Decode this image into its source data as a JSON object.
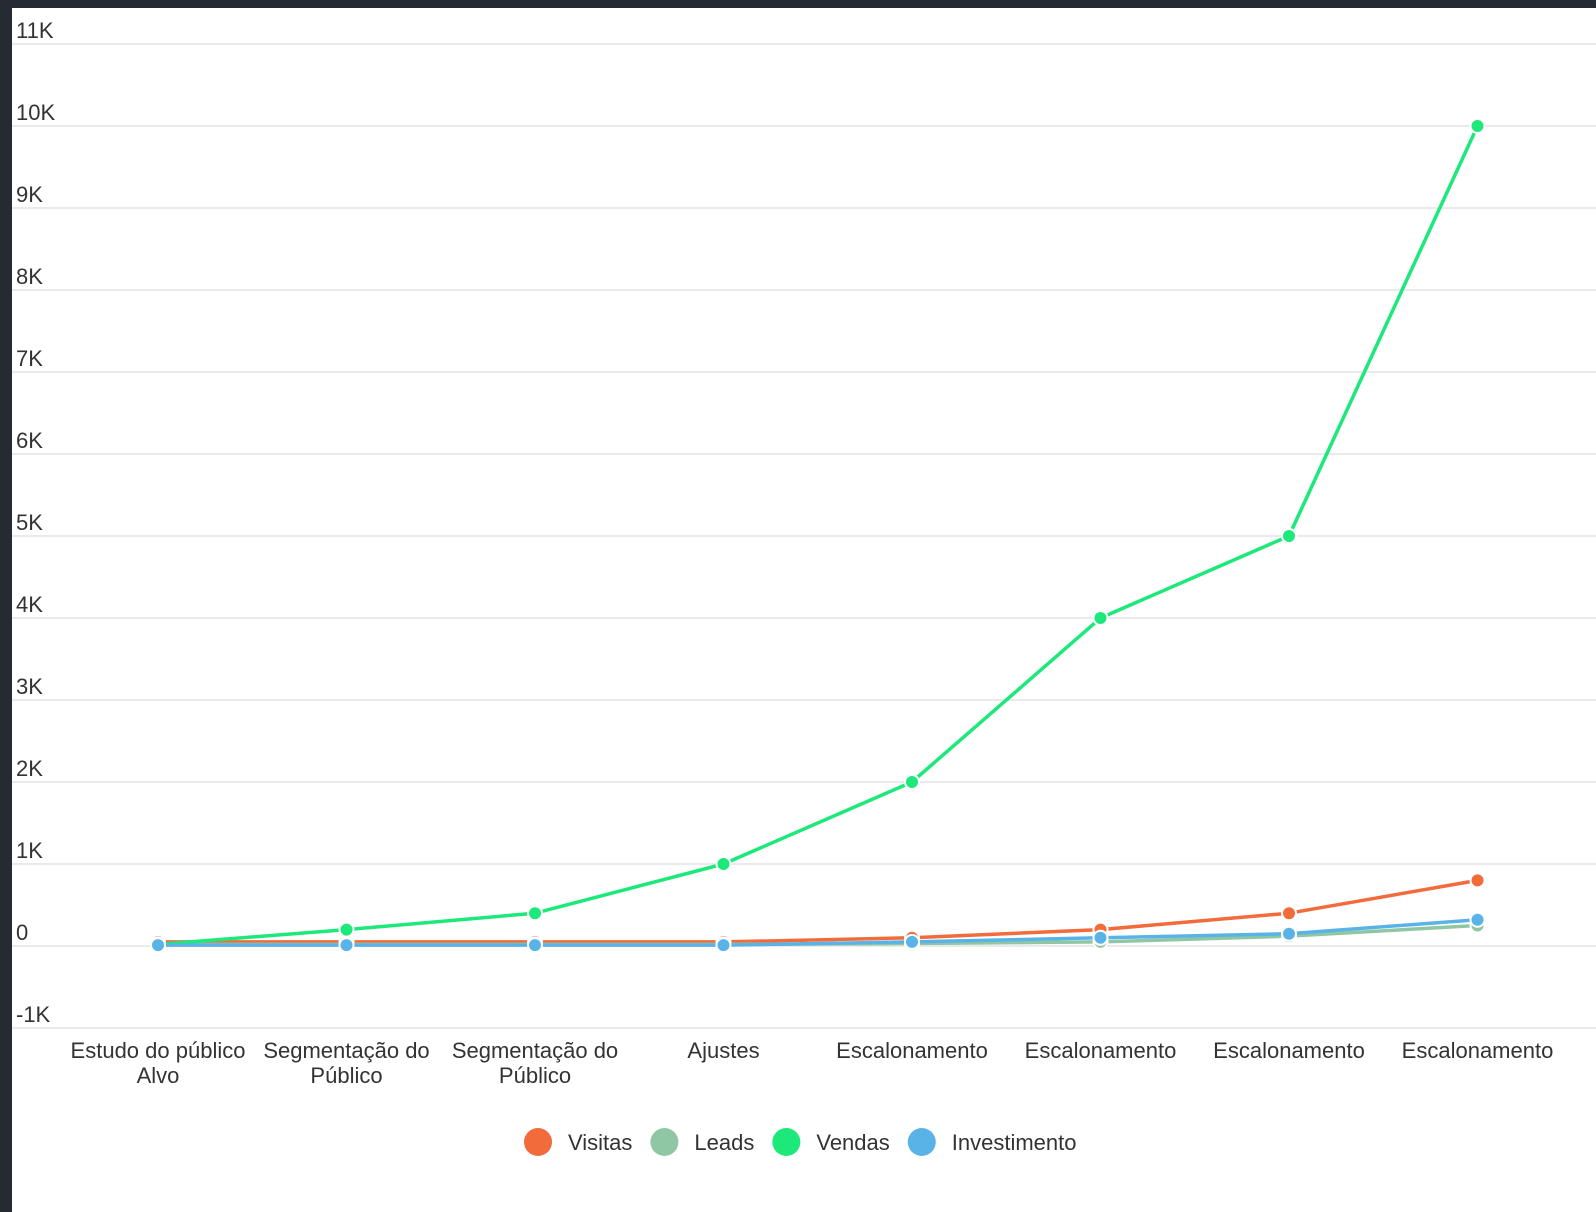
{
  "chart_data": {
    "type": "line",
    "categories": [
      [
        "Estudo do público",
        "Alvo"
      ],
      [
        "Segmentação do",
        "Público"
      ],
      [
        "Segmentação do",
        "Público"
      ],
      [
        "Ajustes"
      ],
      [
        "Escalonamento"
      ],
      [
        "Escalonamento"
      ],
      [
        "Escalonamento"
      ],
      [
        "Escalonamento"
      ]
    ],
    "series": [
      {
        "name": "Visitas",
        "color": "#f26b3a",
        "values": [
          50,
          50,
          50,
          50,
          100,
          200,
          400,
          800
        ]
      },
      {
        "name": "Leads",
        "color": "#8fc7a4",
        "values": [
          20,
          20,
          20,
          20,
          30,
          50,
          120,
          250
        ]
      },
      {
        "name": "Vendas",
        "color": "#1de87a",
        "values": [
          20,
          200,
          400,
          1000,
          2000,
          4000,
          5000,
          10000
        ]
      },
      {
        "name": "Investimento",
        "color": "#5ab3e6",
        "values": [
          10,
          10,
          10,
          10,
          50,
          100,
          150,
          320
        ]
      }
    ],
    "ylim": [
      -1000,
      11000
    ],
    "yticks": [
      {
        "value": 11000,
        "label": "11K"
      },
      {
        "value": 10000,
        "label": "10K"
      },
      {
        "value": 9000,
        "label": "9K"
      },
      {
        "value": 8000,
        "label": "8K"
      },
      {
        "value": 7000,
        "label": "7K"
      },
      {
        "value": 6000,
        "label": "6K"
      },
      {
        "value": 5000,
        "label": "5K"
      },
      {
        "value": 4000,
        "label": "4K"
      },
      {
        "value": 3000,
        "label": "3K"
      },
      {
        "value": 2000,
        "label": "2K"
      },
      {
        "value": 1000,
        "label": "1K"
      },
      {
        "value": 0,
        "label": "0"
      },
      {
        "value": -1000,
        "label": "-1K"
      }
    ],
    "grid": true,
    "legend_position": "bottom-center"
  }
}
